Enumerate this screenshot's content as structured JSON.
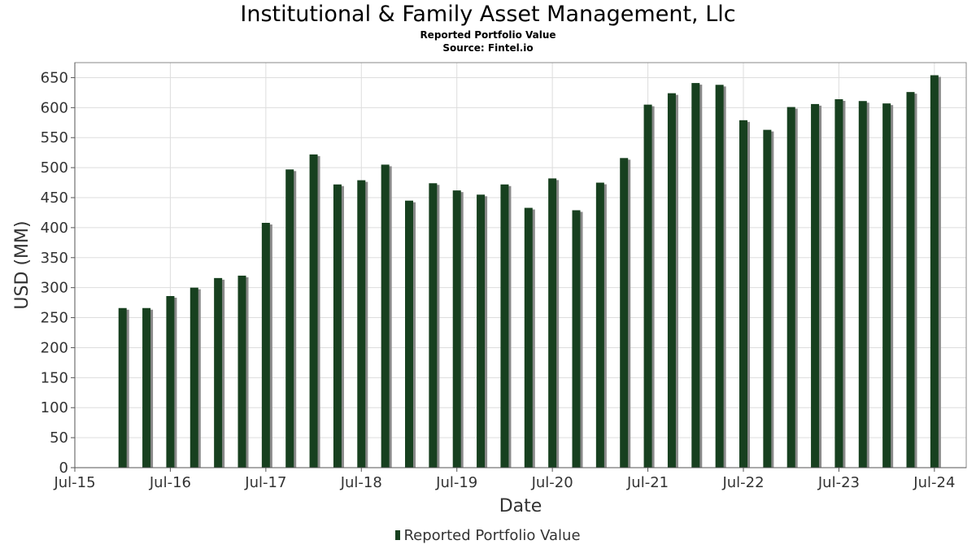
{
  "header": {
    "title": "Institutional & Family Asset Management, Llc",
    "subtitle": "Reported Portfolio Value",
    "source": "Source: Fintel.io"
  },
  "legend": {
    "label": "Reported Portfolio Value"
  },
  "colors": {
    "bar": "#17401f",
    "shadow": "#8a8a8a",
    "grid": "#dddddd",
    "border": "#888888"
  },
  "chart_data": {
    "type": "bar",
    "title": "Institutional & Family Asset Management, Llc",
    "subtitle": "Reported Portfolio Value",
    "xlabel": "Date",
    "ylabel": "USD (MM)",
    "ylim": [
      0,
      675
    ],
    "xlim": [
      "2015-07",
      "2024-11"
    ],
    "grid": true,
    "legend_position": "bottom",
    "y_ticks": [
      0,
      50,
      100,
      150,
      200,
      250,
      300,
      350,
      400,
      450,
      500,
      550,
      600,
      650
    ],
    "x_tick_labels": [
      "Jul-15",
      "Jul-16",
      "Jul-17",
      "Jul-18",
      "Jul-19",
      "Jul-20",
      "Jul-21",
      "Jul-22",
      "Jul-23",
      "Jul-24"
    ],
    "x_tick_dates": [
      "2015-07",
      "2016-07",
      "2017-07",
      "2018-07",
      "2019-07",
      "2020-07",
      "2021-07",
      "2022-07",
      "2023-07",
      "2024-07"
    ],
    "series": [
      {
        "name": "Reported Portfolio Value",
        "x": [
          "2016-01",
          "2016-04",
          "2016-07",
          "2016-10",
          "2017-01",
          "2017-04",
          "2017-07",
          "2017-10",
          "2018-01",
          "2018-04",
          "2018-07",
          "2018-10",
          "2019-01",
          "2019-04",
          "2019-07",
          "2019-10",
          "2020-01",
          "2020-04",
          "2020-07",
          "2020-10",
          "2021-01",
          "2021-04",
          "2021-07",
          "2021-10",
          "2022-01",
          "2022-04",
          "2022-07",
          "2022-10",
          "2023-01",
          "2023-04",
          "2023-07",
          "2023-10",
          "2024-01",
          "2024-04",
          "2024-07"
        ],
        "values": [
          266,
          266,
          286,
          300,
          316,
          320,
          408,
          497,
          522,
          472,
          479,
          505,
          445,
          474,
          462,
          455,
          472,
          433,
          482,
          429,
          475,
          516,
          605,
          624,
          641,
          638,
          579,
          563,
          601,
          606,
          614,
          611,
          607,
          626,
          654
        ]
      }
    ]
  }
}
